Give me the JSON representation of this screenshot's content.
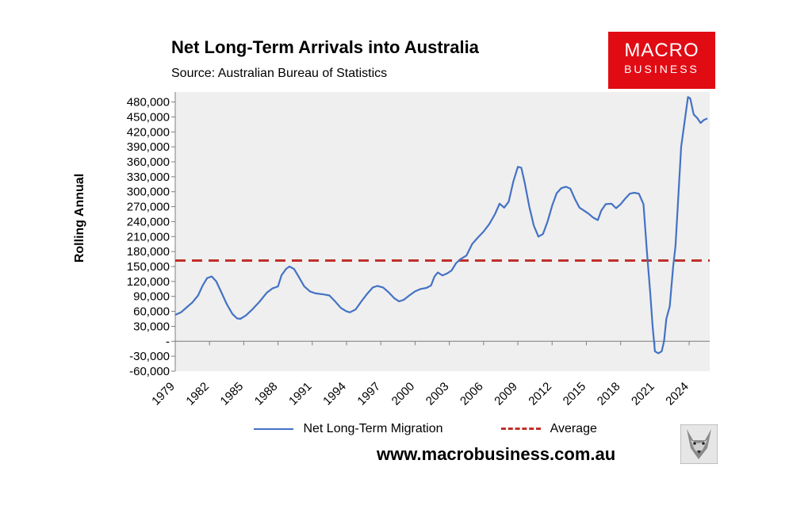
{
  "title": "Net Long-Term Arrivals into Australia",
  "subtitle": "Source: Australian Bureau of Statistics",
  "logo": {
    "line1": "MACRO",
    "line2": "BUSINESS",
    "color": "#e10b14"
  },
  "website": "www.macrobusiness.com.au",
  "chart_data": {
    "type": "line",
    "ylabel": "Rolling Annual",
    "xlabel": "",
    "ylim": [
      -60000,
      500000
    ],
    "xlim": [
      1979,
      2025.8
    ],
    "y_ticks": [
      {
        "value": 480000,
        "label": "480,000"
      },
      {
        "value": 450000,
        "label": "450,000"
      },
      {
        "value": 420000,
        "label": "420,000"
      },
      {
        "value": 390000,
        "label": "390,000"
      },
      {
        "value": 360000,
        "label": "360,000"
      },
      {
        "value": 330000,
        "label": "330,000"
      },
      {
        "value": 300000,
        "label": "300,000"
      },
      {
        "value": 270000,
        "label": "270,000"
      },
      {
        "value": 240000,
        "label": "240,000"
      },
      {
        "value": 210000,
        "label": "210,000"
      },
      {
        "value": 180000,
        "label": "180,000"
      },
      {
        "value": 150000,
        "label": "150,000"
      },
      {
        "value": 120000,
        "label": "120,000"
      },
      {
        "value": 90000,
        "label": "90,000"
      },
      {
        "value": 60000,
        "label": "60,000"
      },
      {
        "value": 30000,
        "label": "30,000"
      },
      {
        "value": 0,
        "label": "-"
      },
      {
        "value": -30000,
        "label": "-30,000"
      },
      {
        "value": -60000,
        "label": "-60,000"
      }
    ],
    "x_ticks": [
      {
        "value": 1979,
        "label": "1979"
      },
      {
        "value": 1982,
        "label": "1982"
      },
      {
        "value": 1985,
        "label": "1985"
      },
      {
        "value": 1988,
        "label": "1988"
      },
      {
        "value": 1991,
        "label": "1991"
      },
      {
        "value": 1994,
        "label": "1994"
      },
      {
        "value": 1997,
        "label": "1997"
      },
      {
        "value": 2000,
        "label": "2000"
      },
      {
        "value": 2003,
        "label": "2003"
      },
      {
        "value": 2006,
        "label": "2006"
      },
      {
        "value": 2009,
        "label": "2009"
      },
      {
        "value": 2012,
        "label": "2012"
      },
      {
        "value": 2015,
        "label": "2015"
      },
      {
        "value": 2018,
        "label": "2018"
      },
      {
        "value": 2021,
        "label": "2021"
      },
      {
        "value": 2024,
        "label": "2024"
      }
    ],
    "series": [
      {
        "name": "Net Long-Term Migration",
        "color": "#4472c4",
        "points": [
          [
            1979.0,
            53000
          ],
          [
            1979.5,
            58000
          ],
          [
            1980.0,
            68000
          ],
          [
            1980.5,
            78000
          ],
          [
            1981.0,
            92000
          ],
          [
            1981.4,
            112000
          ],
          [
            1981.8,
            127000
          ],
          [
            1982.2,
            130000
          ],
          [
            1982.6,
            120000
          ],
          [
            1983.0,
            100000
          ],
          [
            1983.5,
            75000
          ],
          [
            1984.0,
            55000
          ],
          [
            1984.4,
            46000
          ],
          [
            1984.7,
            45000
          ],
          [
            1985.2,
            52000
          ],
          [
            1985.8,
            65000
          ],
          [
            1986.4,
            80000
          ],
          [
            1987.0,
            97000
          ],
          [
            1987.5,
            106000
          ],
          [
            1988.0,
            110000
          ],
          [
            1988.3,
            132000
          ],
          [
            1988.7,
            145000
          ],
          [
            1989.0,
            150000
          ],
          [
            1989.4,
            145000
          ],
          [
            1989.8,
            130000
          ],
          [
            1990.3,
            110000
          ],
          [
            1990.8,
            100000
          ],
          [
            1991.3,
            96000
          ],
          [
            1992.0,
            94000
          ],
          [
            1992.5,
            92000
          ],
          [
            1993.0,
            80000
          ],
          [
            1993.5,
            67000
          ],
          [
            1994.0,
            60000
          ],
          [
            1994.3,
            58000
          ],
          [
            1994.8,
            64000
          ],
          [
            1995.3,
            80000
          ],
          [
            1995.8,
            95000
          ],
          [
            1996.3,
            108000
          ],
          [
            1996.7,
            111000
          ],
          [
            1997.2,
            108000
          ],
          [
            1997.7,
            98000
          ],
          [
            1998.2,
            86000
          ],
          [
            1998.6,
            80000
          ],
          [
            1999.0,
            83000
          ],
          [
            1999.5,
            92000
          ],
          [
            2000.0,
            100000
          ],
          [
            2000.5,
            105000
          ],
          [
            2001.0,
            107000
          ],
          [
            2001.4,
            112000
          ],
          [
            2001.7,
            130000
          ],
          [
            2002.0,
            138000
          ],
          [
            2002.4,
            132000
          ],
          [
            2002.8,
            136000
          ],
          [
            2003.2,
            142000
          ],
          [
            2003.6,
            157000
          ],
          [
            2004.0,
            165000
          ],
          [
            2004.5,
            172000
          ],
          [
            2005.0,
            195000
          ],
          [
            2005.5,
            208000
          ],
          [
            2006.0,
            220000
          ],
          [
            2006.5,
            235000
          ],
          [
            2007.0,
            255000
          ],
          [
            2007.4,
            276000
          ],
          [
            2007.8,
            268000
          ],
          [
            2008.2,
            280000
          ],
          [
            2008.6,
            320000
          ],
          [
            2009.0,
            350000
          ],
          [
            2009.3,
            348000
          ],
          [
            2009.6,
            318000
          ],
          [
            2010.0,
            270000
          ],
          [
            2010.4,
            232000
          ],
          [
            2010.8,
            210000
          ],
          [
            2011.2,
            215000
          ],
          [
            2011.6,
            240000
          ],
          [
            2012.0,
            272000
          ],
          [
            2012.4,
            297000
          ],
          [
            2012.8,
            307000
          ],
          [
            2013.2,
            310000
          ],
          [
            2013.6,
            306000
          ],
          [
            2014.0,
            285000
          ],
          [
            2014.4,
            268000
          ],
          [
            2014.8,
            262000
          ],
          [
            2015.2,
            256000
          ],
          [
            2015.6,
            248000
          ],
          [
            2016.0,
            243000
          ],
          [
            2016.3,
            262000
          ],
          [
            2016.7,
            275000
          ],
          [
            2017.2,
            276000
          ],
          [
            2017.6,
            267000
          ],
          [
            2018.0,
            275000
          ],
          [
            2018.4,
            286000
          ],
          [
            2018.8,
            296000
          ],
          [
            2019.2,
            298000
          ],
          [
            2019.6,
            296000
          ],
          [
            2020.0,
            275000
          ],
          [
            2020.3,
            180000
          ],
          [
            2020.6,
            95000
          ],
          [
            2020.8,
            30000
          ],
          [
            2021.0,
            -20000
          ],
          [
            2021.3,
            -24000
          ],
          [
            2021.6,
            -20000
          ],
          [
            2021.8,
            0
          ],
          [
            2022.0,
            45000
          ],
          [
            2022.3,
            70000
          ],
          [
            2022.6,
            150000
          ],
          [
            2022.8,
            190000
          ],
          [
            2023.0,
            270000
          ],
          [
            2023.3,
            390000
          ],
          [
            2023.6,
            440000
          ],
          [
            2023.9,
            490000
          ],
          [
            2024.1,
            487000
          ],
          [
            2024.4,
            455000
          ],
          [
            2024.7,
            448000
          ],
          [
            2025.0,
            438000
          ],
          [
            2025.3,
            444000
          ],
          [
            2025.6,
            447000
          ]
        ]
      },
      {
        "name": "Average",
        "color": "#c0302b",
        "style": "dashed",
        "constant": 162000
      }
    ],
    "grid": false,
    "legend_position": "bottom"
  },
  "legend": {
    "items": [
      {
        "label": "Net Long-Term Migration",
        "color": "#4472c4",
        "style": "solid"
      },
      {
        "label": "Average",
        "color": "#c0302b",
        "style": "dashed"
      }
    ]
  },
  "icons": {
    "fox": "fox-icon"
  }
}
